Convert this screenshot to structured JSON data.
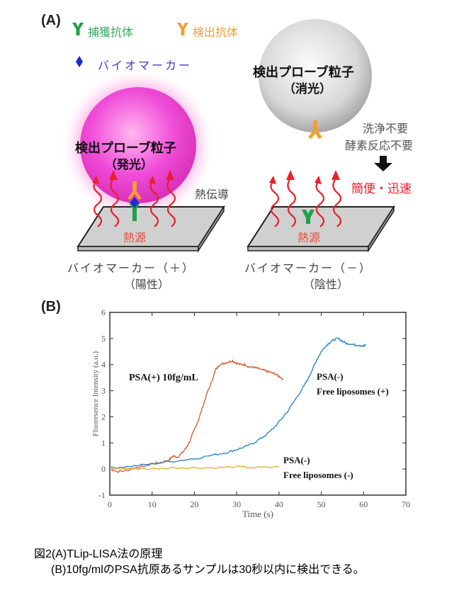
{
  "diagram": {
    "panel_a_label": "(A)",
    "legend": {
      "capture_antibody": {
        "label": "捕獲抗体",
        "color": "#1fa04a",
        "icon": "y-antibody-icon"
      },
      "detection_antibody": {
        "label": "検出抗体",
        "color": "#f0a030",
        "icon": "y-antibody-icon"
      },
      "biomarker": {
        "label": "バイオマーカー",
        "color": "#2020c8",
        "icon": "diamond-icon"
      }
    },
    "glowing_particle": {
      "title": "検出プローブ粒子",
      "subtitle": "（発光）",
      "color": "#e040c0"
    },
    "quenched_particle": {
      "title": "検出プローブ粒子",
      "subtitle": "（消光）",
      "color": "#c8c8c8"
    },
    "heat_conduction": "熱伝導",
    "heat_source_left": "熱源",
    "heat_source_right": "熱源",
    "notes": {
      "line1": "洗浄不要",
      "line2": "酵素反応不要"
    },
    "benefit": "簡便・迅速",
    "positive_label": {
      "line1": "バイオマーカー（＋）",
      "line2": "（陽性）"
    },
    "negative_label": {
      "line1": "バイオマーカー（－）",
      "line2": "（陰性）"
    },
    "heat_color": "#e8202a"
  },
  "chart_data": {
    "type": "line",
    "panel_label": "(B)",
    "xlabel": "Time (s)",
    "ylabel": "Fluoresence Intensity (a.u.)",
    "xlim": [
      0,
      70
    ],
    "ylim": [
      -1,
      6
    ],
    "xticks": [
      0,
      10,
      20,
      30,
      40,
      50,
      60,
      70
    ],
    "yticks": [
      -1,
      0,
      1,
      2,
      3,
      4,
      5,
      6
    ],
    "grid": false,
    "series": [
      {
        "name": "PSA(+) 10fg/mL",
        "color": "#d86030",
        "x": [
          0,
          2,
          4,
          6,
          8,
          10,
          12,
          14,
          15,
          16,
          17,
          18,
          19,
          20,
          21,
          22,
          23,
          24,
          25,
          26,
          27,
          28,
          29,
          30,
          31,
          32,
          33,
          34,
          35,
          36,
          37,
          38,
          39,
          40,
          41
        ],
        "y": [
          0.0,
          -0.1,
          -0.05,
          0.05,
          0.1,
          0.2,
          0.25,
          0.35,
          0.5,
          0.45,
          0.6,
          0.8,
          1.1,
          1.5,
          1.9,
          2.4,
          2.9,
          3.3,
          3.8,
          4.0,
          4.05,
          4.1,
          4.15,
          4.05,
          4.0,
          4.0,
          3.9,
          3.9,
          3.85,
          3.8,
          3.75,
          3.7,
          3.65,
          3.55,
          3.45
        ]
      },
      {
        "name": "PSA(-) Free liposomes (+)",
        "color": "#2f86c8",
        "x": [
          0,
          5,
          10,
          15,
          20,
          25,
          28,
          30,
          32,
          34,
          36,
          38,
          40,
          42,
          44,
          46,
          47,
          48,
          49,
          50,
          51,
          52,
          53,
          54,
          55,
          56,
          57,
          58,
          59,
          60,
          60.5
        ],
        "y": [
          0.05,
          0.1,
          0.2,
          0.3,
          0.4,
          0.55,
          0.65,
          0.75,
          0.85,
          1.0,
          1.2,
          1.45,
          1.8,
          2.2,
          2.7,
          3.2,
          3.5,
          3.85,
          4.2,
          4.5,
          4.7,
          4.85,
          4.95,
          5.0,
          4.9,
          4.8,
          4.8,
          4.75,
          4.75,
          4.7,
          4.75
        ]
      },
      {
        "name": "PSA(-) Free liposomes (-)",
        "color": "#e8b030",
        "x": [
          0,
          5,
          10,
          15,
          20,
          25,
          30,
          35,
          40
        ],
        "y": [
          0.0,
          0.02,
          0.0,
          0.05,
          0.05,
          0.05,
          0.08,
          0.05,
          0.08
        ]
      }
    ],
    "annotations": [
      {
        "text": "PSA(+) 10fg/mL"
      },
      {
        "text_line1": "PSA(-)",
        "text_line2": "Free liposomes (+)"
      },
      {
        "text_line1": "PSA(-)",
        "text_line2": "Free liposomes (-)"
      }
    ]
  },
  "caption": {
    "line1": "図2(A)TLip-LISA法の原理",
    "line2": "(B)10fg/mlのPSA抗原あるサンプルは30秒以内に検出できる。"
  }
}
